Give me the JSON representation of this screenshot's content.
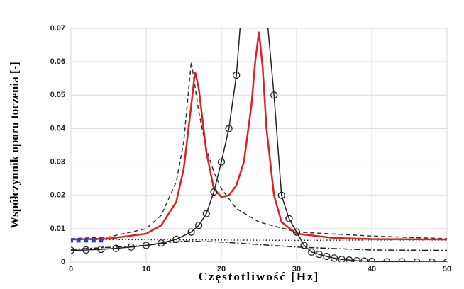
{
  "chart_data": {
    "type": "line",
    "xlabel": "Częstotliwość [Hz]",
    "ylabel": "Współczynnik oporu toczenia [-]",
    "xlim": [
      0,
      50
    ],
    "xticks": [
      0,
      10,
      20,
      30,
      40,
      50
    ],
    "ylim": [
      0,
      0.07
    ],
    "yticks": [
      0,
      0.01,
      0.02,
      0.03,
      0.04,
      0.05,
      0.06,
      0.07
    ],
    "grid": true,
    "series": [
      {
        "color": "#222222",
        "style": "dotted",
        "marker": "none",
        "x": [
          0,
          10,
          20,
          30,
          40,
          50
        ],
        "values": [
          0.0068,
          0.0067,
          0.0066,
          0.0065,
          0.0066,
          0.0066
        ]
      },
      {
        "color": "#222222",
        "style": "dashdot",
        "marker": "none",
        "x": [
          0,
          10,
          15,
          20,
          30,
          40,
          50
        ],
        "values": [
          0.0038,
          0.005,
          0.0063,
          0.006,
          0.0045,
          0.0036,
          0.0035
        ]
      },
      {
        "color": "#333333",
        "style": "dashed",
        "marker": "none",
        "x": [
          0,
          5,
          10,
          12,
          14,
          15,
          16,
          17,
          18,
          19,
          20,
          22,
          25,
          30,
          40,
          50
        ],
        "values": [
          0.007,
          0.0075,
          0.01,
          0.014,
          0.024,
          0.036,
          0.06,
          0.045,
          0.034,
          0.027,
          0.022,
          0.016,
          0.012,
          0.009,
          0.0078,
          0.007
        ]
      },
      {
        "color": "#e02020",
        "style": "solid",
        "marker": "none",
        "x": [
          0,
          5,
          10,
          12,
          14,
          15,
          16,
          16.5,
          17,
          18,
          19,
          20,
          21,
          22,
          23,
          24,
          24.5,
          25,
          25.5,
          26,
          27,
          28,
          30,
          35,
          40,
          50
        ],
        "values": [
          0.0068,
          0.007,
          0.0085,
          0.011,
          0.018,
          0.028,
          0.047,
          0.057,
          0.052,
          0.033,
          0.022,
          0.0195,
          0.02,
          0.023,
          0.03,
          0.047,
          0.06,
          0.069,
          0.058,
          0.04,
          0.02,
          0.012,
          0.0085,
          0.0072,
          0.0069,
          0.0068
        ]
      },
      {
        "color": "#222222",
        "style": "solid",
        "marker": "circle",
        "x": [
          0,
          2,
          4,
          6,
          8,
          10,
          12,
          14,
          16,
          17,
          18,
          19,
          20,
          21,
          22,
          23,
          25,
          26,
          27,
          28,
          29,
          30,
          31,
          32,
          33,
          34,
          35,
          36,
          37,
          38,
          39,
          40,
          42,
          44,
          46,
          48,
          50
        ],
        "values": [
          0.0035,
          0.0036,
          0.0038,
          0.0041,
          0.0045,
          0.005,
          0.0057,
          0.0068,
          0.009,
          0.011,
          0.0145,
          0.021,
          0.03,
          0.04,
          0.056,
          0.085,
          0.1,
          0.075,
          0.05,
          0.02,
          0.013,
          0.009,
          0.005,
          0.003,
          0.0023,
          0.0017,
          0.0012,
          0.0008,
          0.0006,
          0.0004,
          0.0003,
          0.0002,
          0.0001,
          0.0001,
          0,
          0,
          0
        ]
      },
      {
        "color": "#2a3fd0",
        "style": "none",
        "marker": "square",
        "x": [
          0,
          1,
          2,
          3,
          4
        ],
        "values": [
          0.0065,
          0.0065,
          0.0065,
          0.0065,
          0.0065
        ]
      }
    ]
  }
}
